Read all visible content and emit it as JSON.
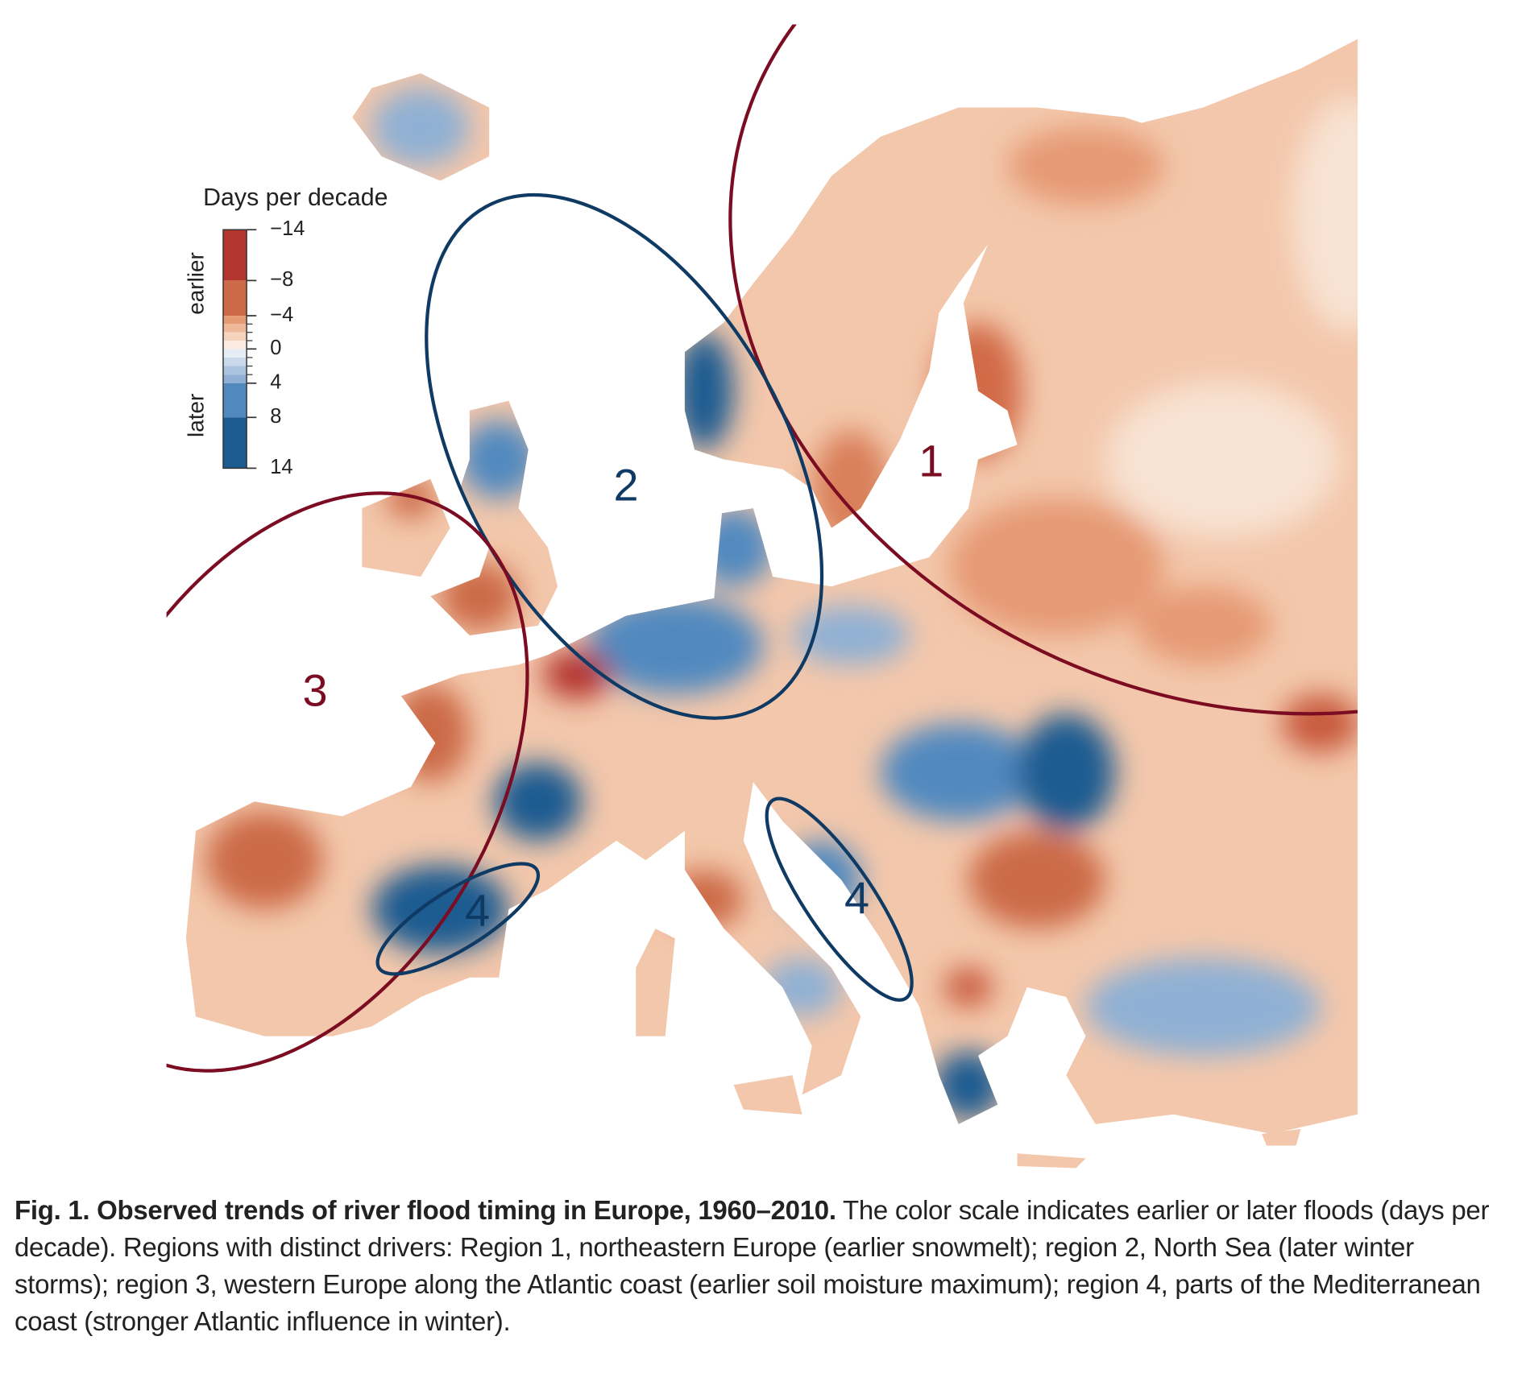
{
  "chart_data": {
    "type": "map",
    "legend": {
      "title": "Days per decade",
      "earlier": "earlier",
      "later": "later",
      "levels": [
        -14,
        -8,
        -4,
        -3,
        -2,
        -1,
        0,
        1,
        2,
        3,
        4,
        8,
        14
      ],
      "colors": [
        "#b3362e",
        "#cc6a47",
        "#e69a74",
        "#efb898",
        "#f6d3bd",
        "#fbebe0",
        "#e6edf5",
        "#c9d8ea",
        "#abc3df",
        "#8fb0d4",
        "#5189bf",
        "#1c5c91"
      ],
      "ticks": [
        {
          "value": -14,
          "label": "−14"
        },
        {
          "value": -8,
          "label": "−8"
        },
        {
          "value": -4,
          "label": "−4"
        },
        0,
        4,
        8,
        14
      ]
    },
    "regions": [
      {
        "label": "1",
        "color": "#7b0c22"
      },
      {
        "label": "2",
        "color": "#0f3a64"
      },
      {
        "label": "3",
        "color": "#7b0c22"
      },
      {
        "label": "4",
        "color": "#0f3a64"
      },
      {
        "label": "4",
        "color": "#0f3a64"
      }
    ]
  },
  "caption": {
    "label": "Fig. 1. Observed trends of river flood timing in Europe, 1960–2010.",
    "text": "The color scale indicates earlier or later floods (days per decade). Regions with distinct drivers: Region 1, northeastern Europe (earlier snowmelt); region 2, North Sea (later winter storms); region 3, western Europe along the Atlantic coast (earlier soil moisture maximum); region 4, parts of the Mediterranean coast (stronger Atlantic influence in winter)."
  }
}
